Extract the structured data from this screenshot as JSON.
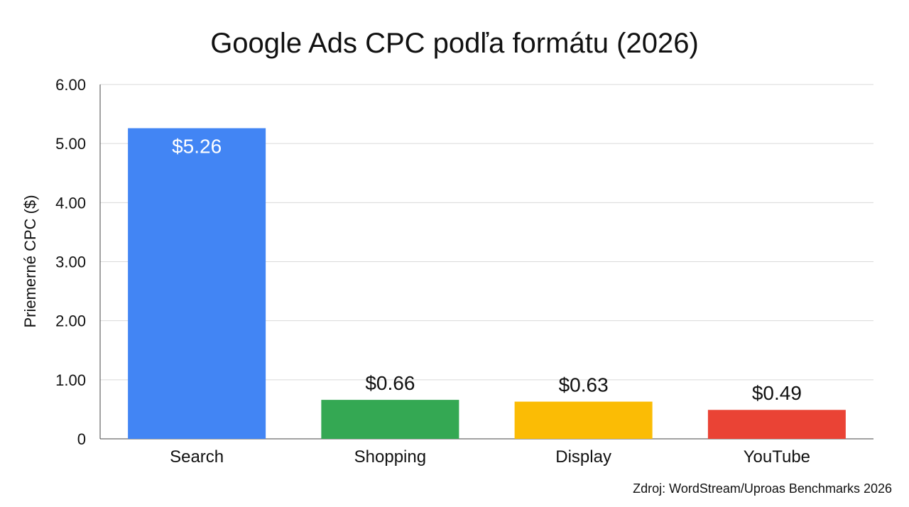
{
  "chart_data": {
    "type": "bar",
    "title": "Google Ads CPC podľa formátu (2026)",
    "xlabel": "",
    "ylabel": "Priemerné CPC ($)",
    "ylim": [
      0,
      6
    ],
    "yticks": [
      "0",
      "1.00",
      "2.00",
      "3.00",
      "4.00",
      "5.00",
      "6.00"
    ],
    "grid": true,
    "categories": [
      "Search",
      "Shopping",
      "Display",
      "YouTube"
    ],
    "values": [
      5.26,
      0.66,
      0.63,
      0.49
    ],
    "value_labels": [
      "$5.26",
      "$0.66",
      "$0.63",
      "$0.49"
    ],
    "colors": [
      "#4285F4",
      "#34A853",
      "#FBBC05",
      "#EA4335"
    ],
    "value_label_positions": [
      "inside",
      "above",
      "above",
      "above"
    ],
    "source": "Zdroj: WordStream/Uproas Benchmarks 2026"
  }
}
